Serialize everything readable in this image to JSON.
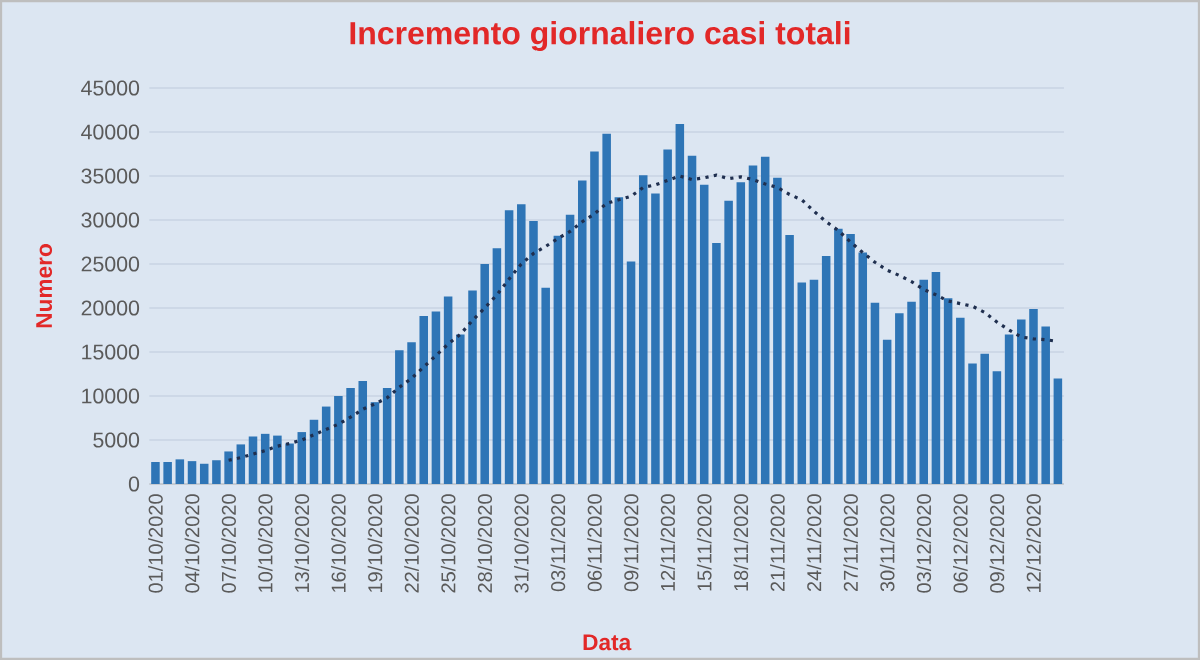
{
  "chart_data": {
    "type": "bar",
    "title": "Incremento giornaliero casi totali",
    "xlabel": "Data",
    "ylabel": "Numero",
    "categories": [
      "01/10/2020",
      null,
      null,
      "04/10/2020",
      null,
      null,
      "07/10/2020",
      null,
      null,
      "10/10/2020",
      null,
      null,
      "13/10/2020",
      null,
      null,
      "16/10/2020",
      null,
      null,
      "19/10/2020",
      null,
      null,
      "22/10/2020",
      null,
      null,
      "25/10/2020",
      null,
      null,
      "28/10/2020",
      null,
      null,
      "31/10/2020",
      null,
      null,
      "03/11/2020",
      null,
      null,
      "06/11/2020",
      null,
      null,
      "09/11/2020",
      null,
      null,
      "12/11/2020",
      null,
      null,
      "15/11/2020",
      null,
      null,
      "18/11/2020",
      null,
      null,
      "21/11/2020",
      null,
      null,
      "24/11/2020",
      null,
      null,
      "27/11/2020",
      null,
      null,
      "30/11/2020",
      null,
      null,
      "03/12/2020",
      null,
      null,
      "06/12/2020",
      null,
      null,
      "09/12/2020",
      null,
      null,
      "12/12/2020",
      null,
      null
    ],
    "series": [
      {
        "color": "#2e75b6",
        "values": [
          2500,
          2500,
          2800,
          2600,
          2300,
          2700,
          3700,
          4500,
          5400,
          5700,
          5500,
          4600,
          5900,
          7300,
          8800,
          10000,
          10900,
          11700,
          9300,
          10900,
          15200,
          16100,
          19100,
          19600,
          21300,
          17000,
          22000,
          25000,
          26800,
          31100,
          31800,
          29900,
          22300,
          28200,
          30600,
          34500,
          37800,
          39800,
          32600,
          25300,
          35100,
          33000,
          38000,
          40900,
          37300,
          34000,
          27400,
          32200,
          34300,
          36200,
          37200,
          34800,
          28300,
          22900,
          23200,
          25900,
          29000,
          28400,
          26300,
          20600,
          16400,
          19400,
          20700,
          23200,
          24100,
          21100,
          18900,
          13700,
          14800,
          12800,
          17000,
          18700,
          19900,
          17900,
          12000
        ]
      },
      {
        "type": "line",
        "color": "#1f2f4f",
        "line_style": "dotted",
        "values": [
          null,
          null,
          null,
          null,
          null,
          null,
          2700,
          3000,
          3400,
          3800,
          4300,
          4600,
          5000,
          5600,
          6200,
          6800,
          7600,
          8500,
          9100,
          9800,
          11000,
          12000,
          13300,
          14600,
          15900,
          17000,
          18600,
          20000,
          21500,
          23300,
          25000,
          26200,
          27000,
          27900,
          28700,
          29800,
          30700,
          31900,
          32300,
          32700,
          33700,
          34000,
          34500,
          35000,
          34600,
          34800,
          35100,
          34700,
          34900,
          34600,
          34100,
          33700,
          32900,
          32300,
          31000,
          29800,
          28800,
          27500,
          26300,
          25200,
          24300,
          23700,
          23000,
          22100,
          21500,
          20800,
          20500,
          20200,
          19500,
          18400,
          17500,
          16700,
          16500,
          16400,
          16200
        ]
      }
    ],
    "ylim": [
      0,
      45000
    ],
    "yticks": [
      0,
      5000,
      10000,
      15000,
      20000,
      25000,
      30000,
      35000,
      40000,
      45000
    ],
    "grid": "y"
  }
}
